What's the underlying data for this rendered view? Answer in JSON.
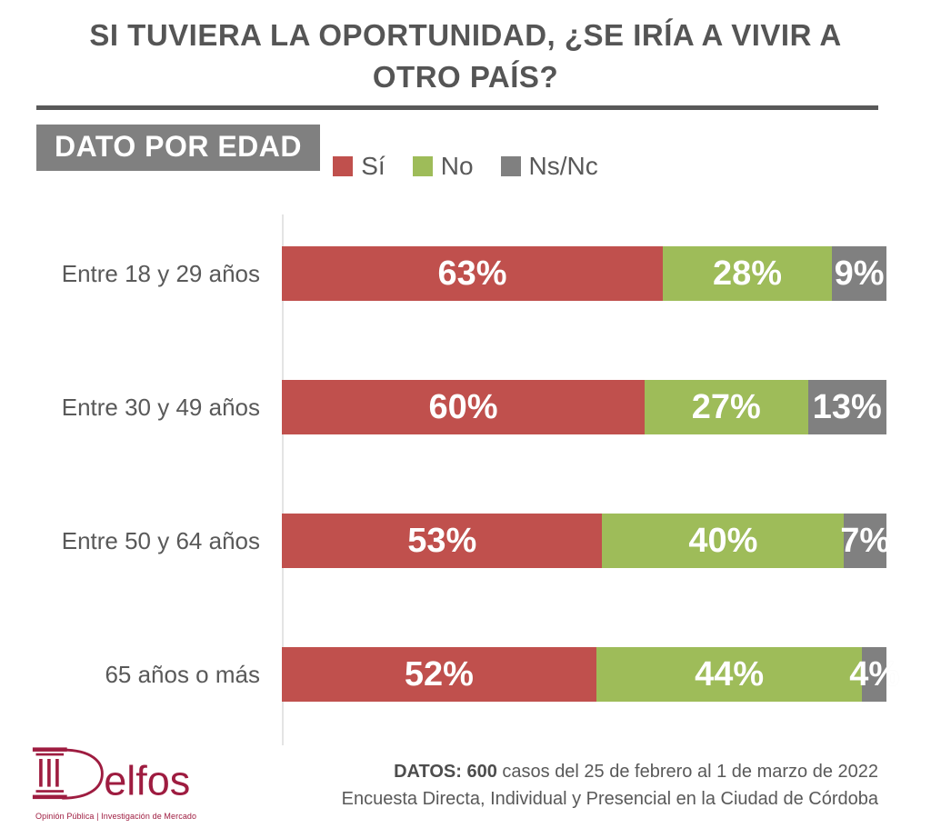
{
  "title": {
    "line1": "SI TUVIERA LA OPORTUNIDAD, ¿SE IRÍA A VIVIR A",
    "line2": "OTRO PAÍS?"
  },
  "section_label": "DATO POR EDAD",
  "colors": {
    "si": "#C0504D",
    "no": "#9EBC59",
    "nsnc": "#808080",
    "heading": "#555555",
    "brand": "#9E1C40"
  },
  "chart_data": {
    "type": "bar",
    "orientation": "horizontal",
    "stacked": true,
    "title": "SI TUVIERA LA OPORTUNIDAD, ¿SE IRÍA A VIVIR A OTRO PAÍS? — DATO POR EDAD",
    "categories": [
      "Entre 18 y 29 años",
      "Entre 30 y 49 años",
      "Entre 50 y 64 años",
      "65 años o más"
    ],
    "series": [
      {
        "name": "Sí",
        "color": "#C0504D",
        "values": [
          63,
          60,
          53,
          52
        ]
      },
      {
        "name": "No",
        "color": "#9EBC59",
        "values": [
          28,
          27,
          40,
          44
        ]
      },
      {
        "name": "Ns/Nc",
        "color": "#808080",
        "values": [
          9,
          13,
          7,
          4
        ]
      }
    ],
    "value_suffix": "%",
    "xlim": [
      0,
      100
    ],
    "grid": false,
    "legend_position": "top"
  },
  "footer": {
    "logo_name": "elfos",
    "logo_tagline": "Opinión Pública | Investigación de Mercado",
    "note_line1_bold": "DATOS: 600",
    "note_line1_rest": " casos del 25 de febrero al 1 de marzo de 2022",
    "note_line2": "Encuesta Directa, Individual y Presencial en la Ciudad de Córdoba"
  }
}
